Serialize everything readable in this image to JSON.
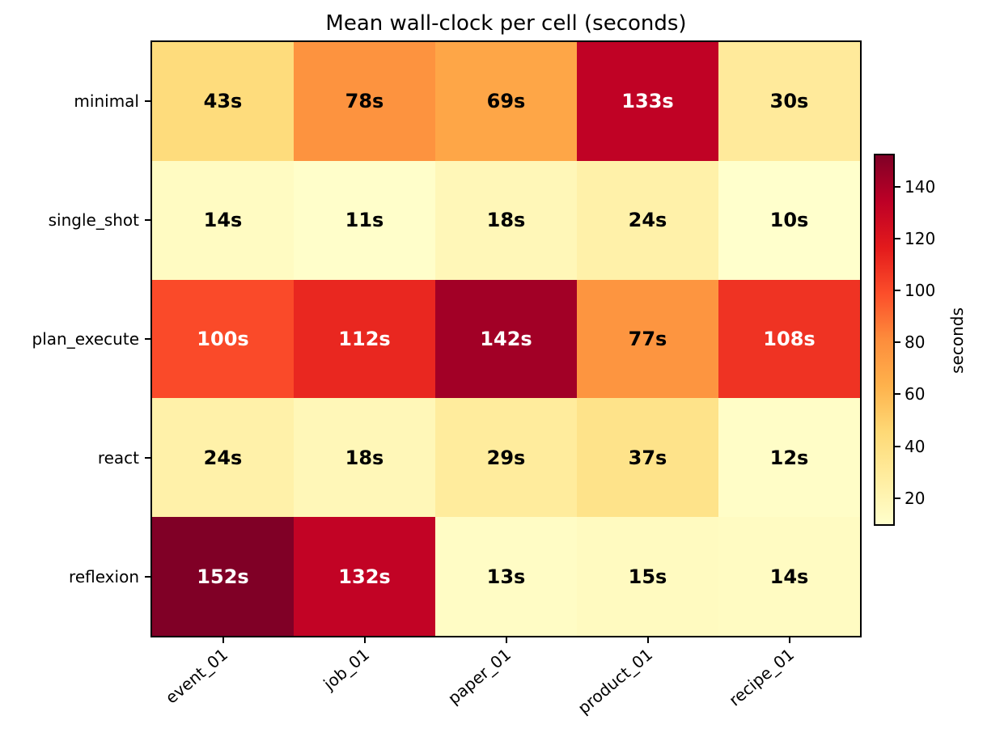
{
  "chart_data": {
    "type": "heatmap",
    "title": "Mean wall-clock per cell (seconds)",
    "rows": [
      "minimal",
      "single_shot",
      "plan_execute",
      "react",
      "reflexion"
    ],
    "columns": [
      "event_01",
      "job_01",
      "paper_01",
      "product_01",
      "recipe_01"
    ],
    "values": [
      [
        43,
        78,
        69,
        133,
        30
      ],
      [
        14,
        11,
        18,
        24,
        10
      ],
      [
        100,
        112,
        142,
        77,
        108
      ],
      [
        24,
        18,
        29,
        37,
        12
      ],
      [
        152,
        132,
        13,
        15,
        14
      ]
    ],
    "cell_label_suffix": "s",
    "vmin": 10,
    "vmax": 152,
    "colorbar": {
      "label": "seconds",
      "ticks": [
        20,
        40,
        60,
        80,
        100,
        120,
        140
      ],
      "position": "right"
    },
    "colormap": {
      "name": "YlOrRd",
      "stops": [
        {
          "pos": 0.0,
          "color": "#ffffcc"
        },
        {
          "pos": 0.125,
          "color": "#ffeda0"
        },
        {
          "pos": 0.25,
          "color": "#fed976"
        },
        {
          "pos": 0.375,
          "color": "#feb24c"
        },
        {
          "pos": 0.5,
          "color": "#fd8d3c"
        },
        {
          "pos": 0.625,
          "color": "#fc4e2a"
        },
        {
          "pos": 0.75,
          "color": "#e31a1c"
        },
        {
          "pos": 0.875,
          "color": "#bd0026"
        },
        {
          "pos": 1.0,
          "color": "#800026"
        }
      ]
    },
    "annotation_text_colors": {
      "dark_cells": "#ffffff",
      "light_cells": "#000000",
      "threshold_norm": 0.55
    },
    "layout_hints": {
      "x_tick_rotation_deg": 40,
      "grid": false,
      "background": "#ffffff",
      "axis_color": "#000000"
    }
  }
}
